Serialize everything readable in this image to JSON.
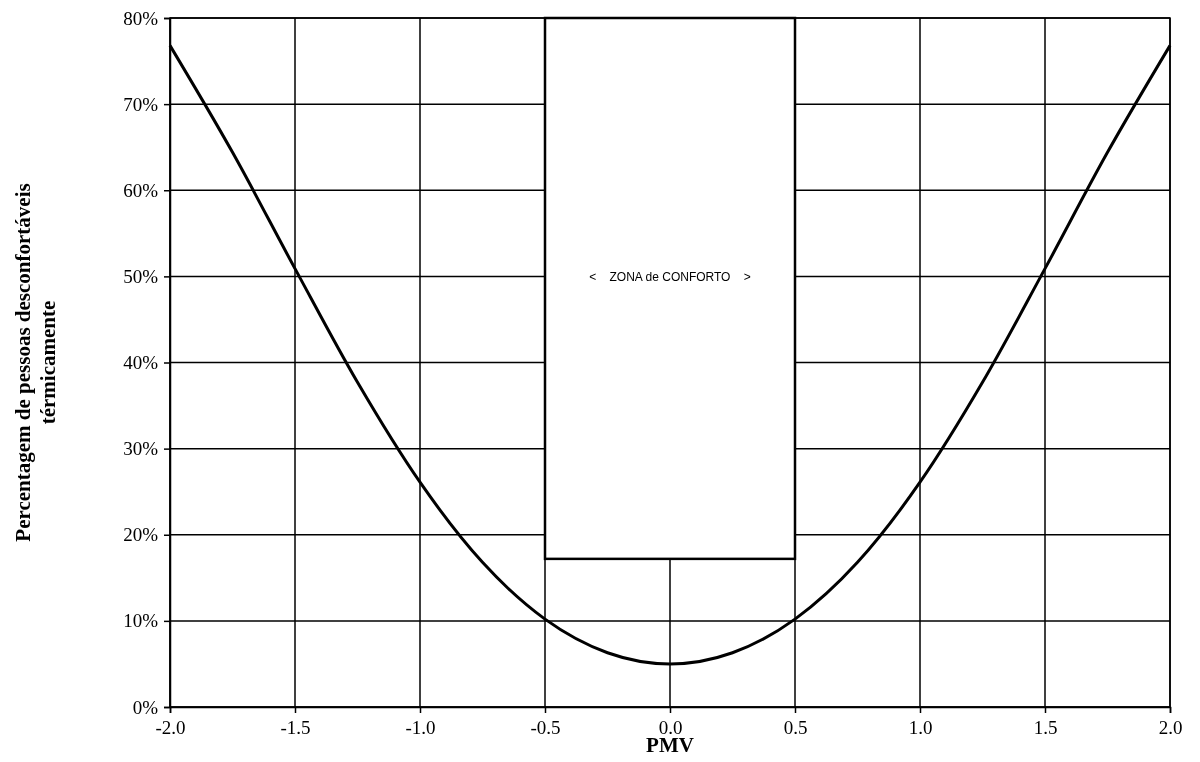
{
  "chart_data": {
    "type": "line",
    "xlabel": "PMV",
    "ylabel": "Percentagem de pessoas desconfortáveis\ntérmicamente",
    "x": [
      -2,
      -1.75,
      -1.5,
      -1.25,
      -1,
      -0.75,
      -0.5,
      -0.25,
      0,
      0.25,
      0.5,
      0.75,
      1,
      1.25,
      1.5,
      1.75,
      2
    ],
    "series": [
      {
        "color": "#000000",
        "values": [
          76.8,
          64.4,
          50.9,
          37.7,
          26.1,
          16.8,
          10.2,
          6.3,
          5,
          6.3,
          10.2,
          16.8,
          26.1,
          37.7,
          50.9,
          64.4,
          76.8
        ]
      }
    ],
    "xlim": [
      -2,
      2
    ],
    "ylim": [
      0,
      80
    ],
    "xticks": [
      {
        "value": -2,
        "label": "-2.0"
      },
      {
        "value": -1.5,
        "label": "-1.5"
      },
      {
        "value": -1,
        "label": "-1.0"
      },
      {
        "value": -0.5,
        "label": "-0.5"
      },
      {
        "value": 0,
        "label": "0.0"
      },
      {
        "value": 0.5,
        "label": "0.5"
      },
      {
        "value": 1,
        "label": "1.0"
      },
      {
        "value": 1.5,
        "label": "1.5"
      },
      {
        "value": 2,
        "label": "2.0"
      }
    ],
    "yticks": [
      {
        "value": 0,
        "label": "0%"
      },
      {
        "value": 10,
        "label": "10%"
      },
      {
        "value": 20,
        "label": "20%"
      },
      {
        "value": 30,
        "label": "30%"
      },
      {
        "value": 40,
        "label": "40%"
      },
      {
        "value": 50,
        "label": "50%"
      },
      {
        "value": 60,
        "label": "60%"
      },
      {
        "value": 70,
        "label": "70%"
      },
      {
        "value": 80,
        "label": "80%"
      }
    ],
    "grid": true,
    "marker": "none",
    "line_style": "solid",
    "bands": [
      {
        "axis": "x",
        "from": -0.5,
        "to": 0.5,
        "label": "<    ZONA de CONFORTO    >",
        "color": "#ffffff"
      }
    ]
  }
}
